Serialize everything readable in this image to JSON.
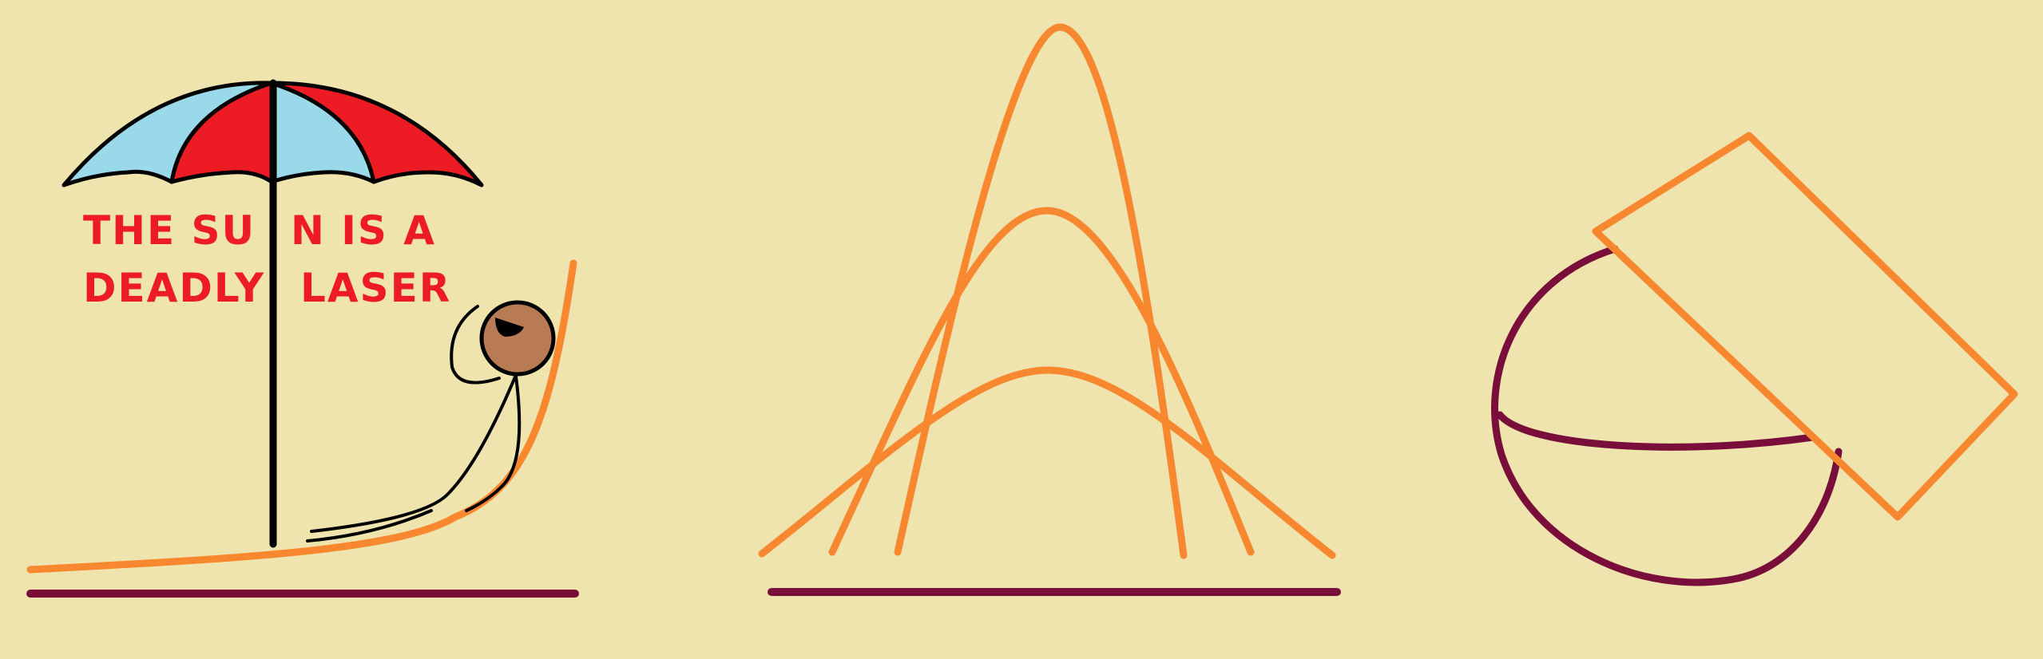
{
  "colors": {
    "background": "#EFE3AE",
    "orange": "#F7882F",
    "maroon": "#7A0E3A",
    "red": "#ED1C24",
    "light_blue": "#99D9EA",
    "skin": "#B97A56",
    "black": "#000000"
  },
  "panel_left": {
    "sign": {
      "line1_left": "THE SU",
      "line1_right": "N IS A",
      "line2_left": "DEADLY",
      "line2_right": "LASER"
    }
  }
}
